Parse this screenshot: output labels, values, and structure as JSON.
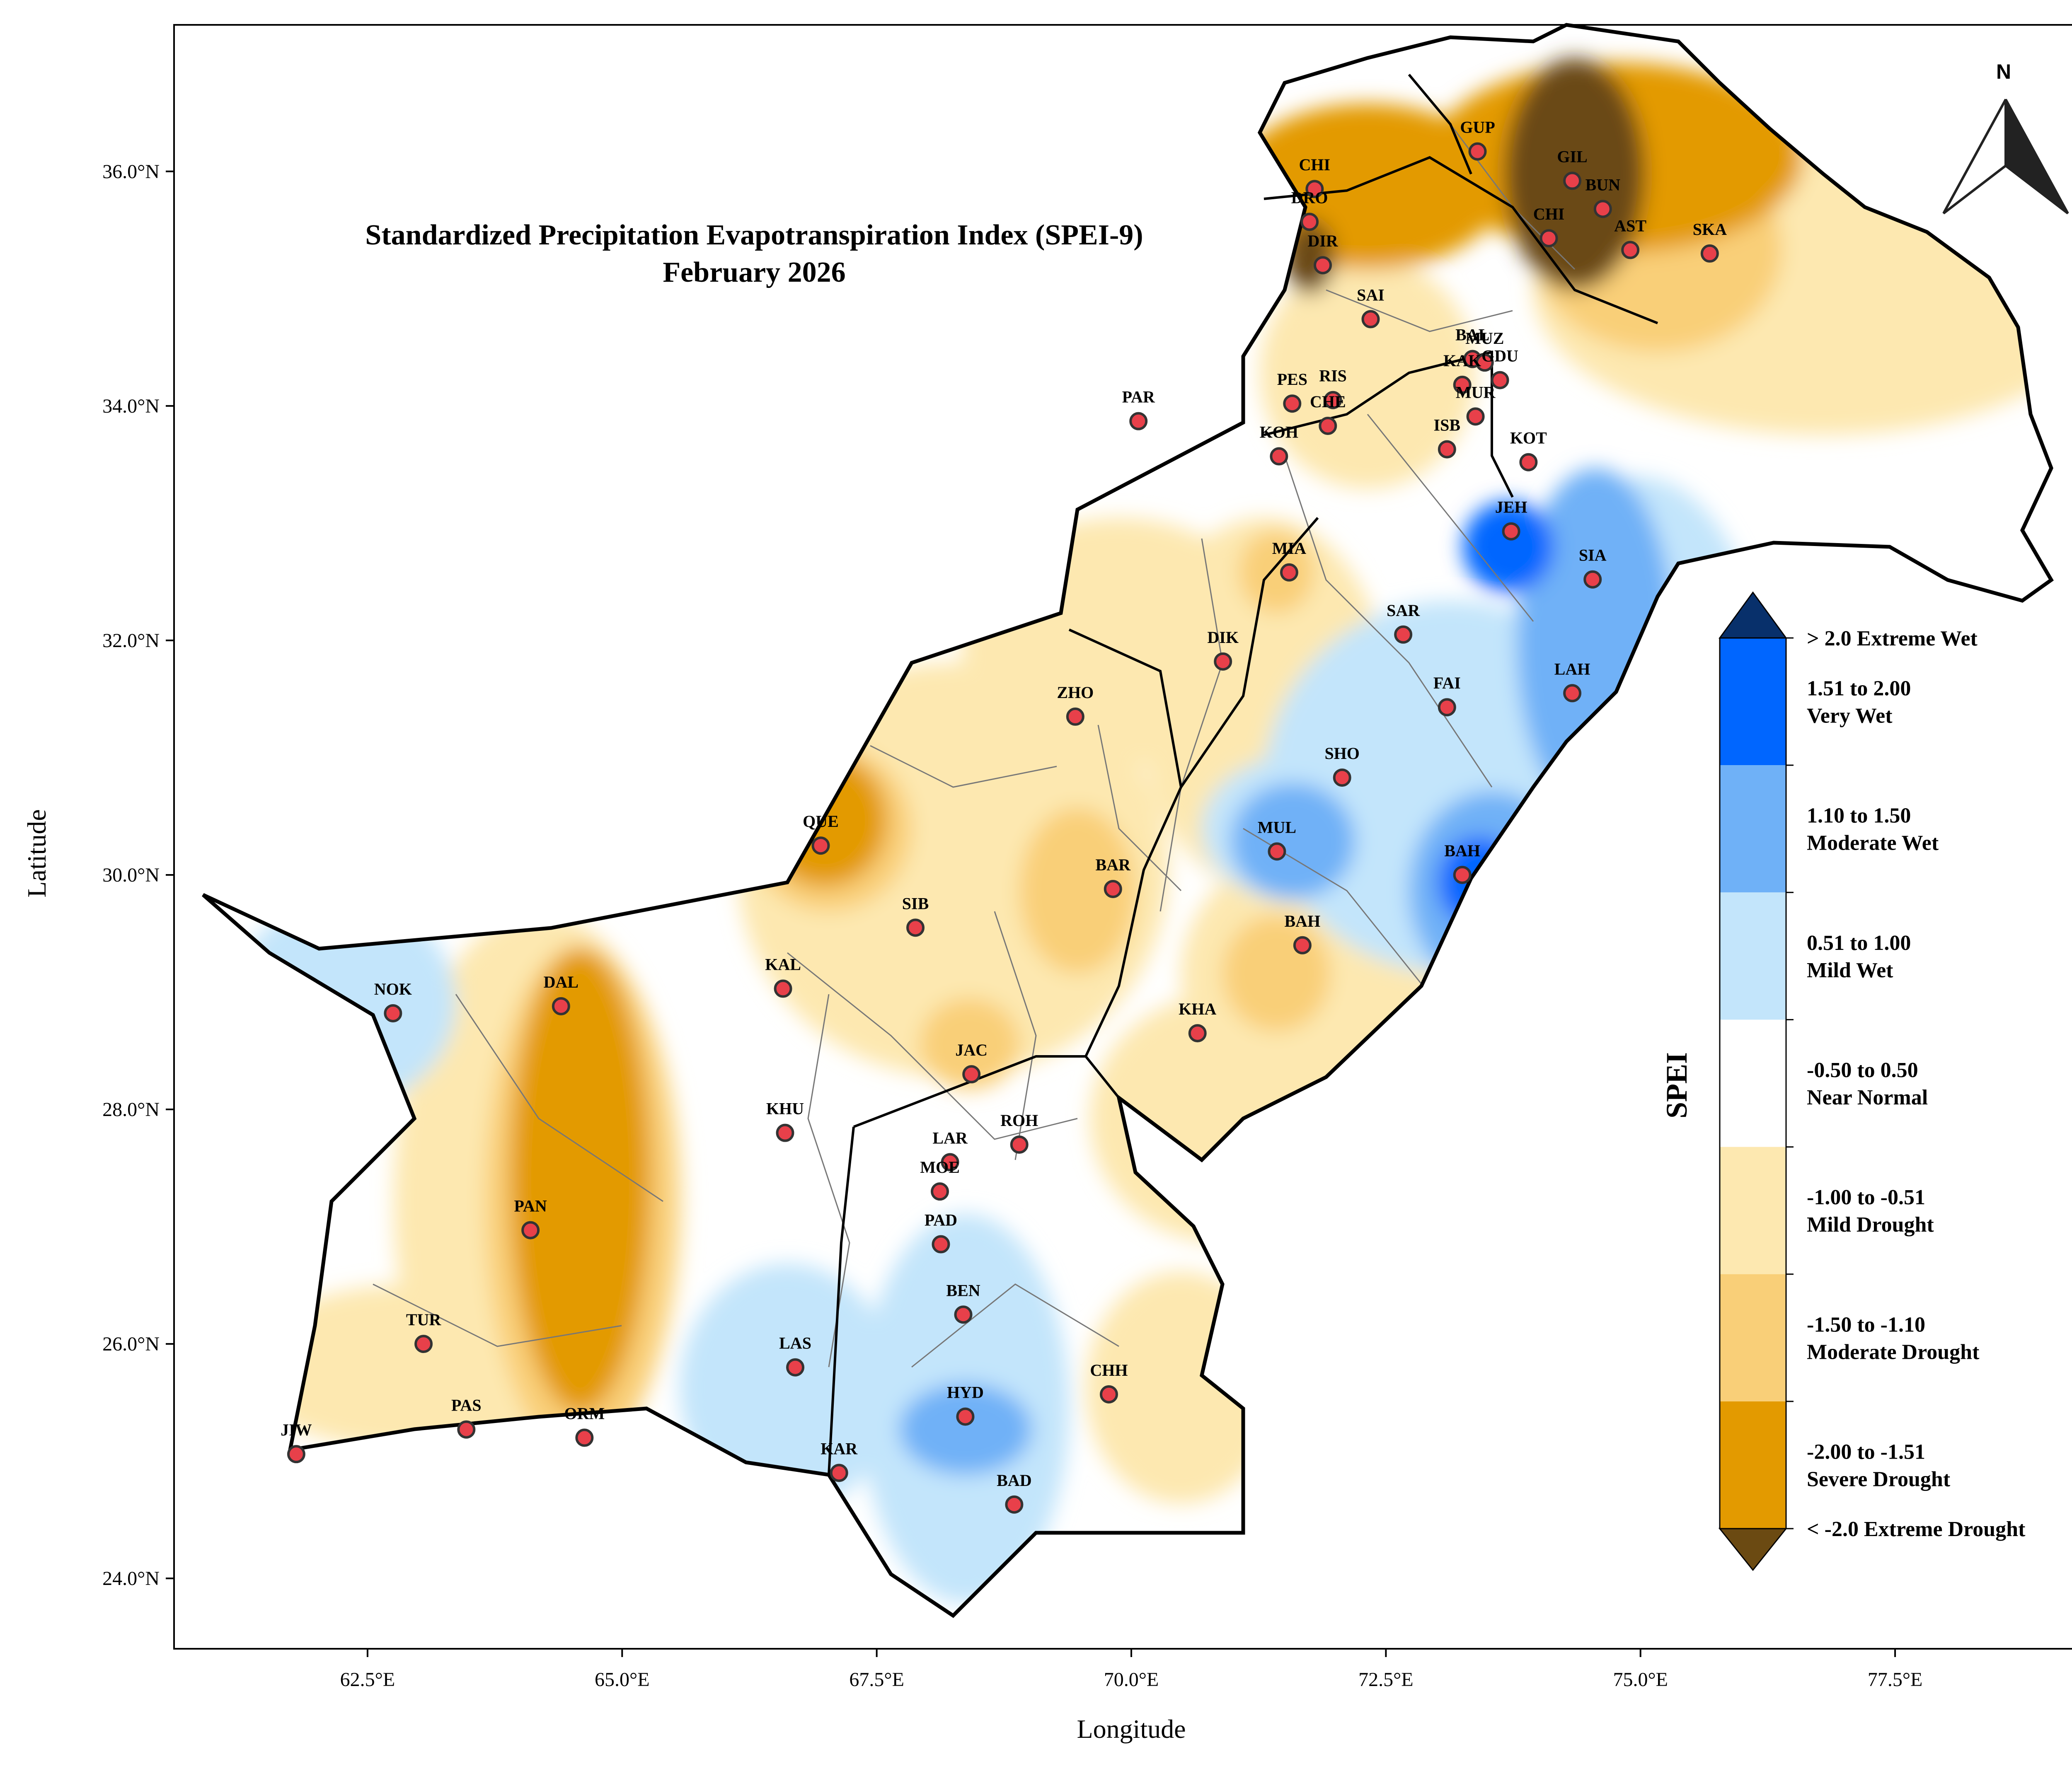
{
  "title": {
    "line1": "Standardized Precipitation Evapotranspiration Index (SPEI-9)",
    "line2": "February 2026"
  },
  "axes": {
    "xlabel": "Longitude",
    "ylabel": "Latitude",
    "x_ticks": [
      {
        "value": 62.5,
        "label": "62.5°E"
      },
      {
        "value": 65.0,
        "label": "65.0°E"
      },
      {
        "value": 67.5,
        "label": "67.5°E"
      },
      {
        "value": 70.0,
        "label": "70.0°E"
      },
      {
        "value": 72.5,
        "label": "72.5°E"
      },
      {
        "value": 75.0,
        "label": "75.0°E"
      },
      {
        "value": 77.5,
        "label": "77.5°E"
      }
    ],
    "y_ticks": [
      {
        "value": 24.0,
        "label": "24.0°N"
      },
      {
        "value": 26.0,
        "label": "26.0°N"
      },
      {
        "value": 28.0,
        "label": "28.0°N"
      },
      {
        "value": 30.0,
        "label": "30.0°N"
      },
      {
        "value": 32.0,
        "label": "32.0°N"
      },
      {
        "value": 34.0,
        "label": "34.0°N"
      },
      {
        "value": 36.0,
        "label": "36.0°N"
      }
    ],
    "xlim": [
      60.6,
      79.4
    ],
    "ylim": [
      23.4,
      37.25
    ]
  },
  "north_arrow": {
    "label": "N"
  },
  "legend": {
    "title": "SPEI",
    "classes": [
      {
        "color": "#08306b",
        "lines": [
          "> 2.0 Extreme Wet"
        ]
      },
      {
        "color": "#0066ff",
        "lines": [
          "1.51 to 2.00",
          "Very Wet"
        ]
      },
      {
        "color": "#6fb1f7",
        "lines": [
          "1.10 to 1.50",
          "Moderate Wet"
        ]
      },
      {
        "color": "#c3e5fb",
        "lines": [
          "0.51 to 1.00",
          "Mild Wet"
        ]
      },
      {
        "color": "#ffffff",
        "lines": [
          "-0.50 to 0.50",
          "Near Normal"
        ]
      },
      {
        "color": "#fde8b0",
        "lines": [
          "-1.00 to -0.51",
          "Mild Drought"
        ]
      },
      {
        "color": "#f9cf78",
        "lines": [
          "-1.50 to -1.10",
          "Moderate Drought"
        ]
      },
      {
        "color": "#e39a00",
        "lines": [
          "-2.00 to -1.51",
          "Severe Drought"
        ]
      },
      {
        "color": "#6b4a12",
        "lines": [
          "< -2.0 Extreme Drought"
        ]
      }
    ]
  },
  "stations": [
    {
      "code": "CHI",
      "lon": 71.8,
      "lat": 35.85
    },
    {
      "code": "DRO",
      "lon": 71.75,
      "lat": 35.57
    },
    {
      "code": "DIR",
      "lon": 71.88,
      "lat": 35.2
    },
    {
      "code": "GUP",
      "lon": 73.4,
      "lat": 36.17
    },
    {
      "code": "GIL",
      "lon": 74.33,
      "lat": 35.92
    },
    {
      "code": "BUN",
      "lon": 74.63,
      "lat": 35.68
    },
    {
      "code": "CHI",
      "lon": 74.1,
      "lat": 35.43
    },
    {
      "code": "AST",
      "lon": 74.9,
      "lat": 35.33
    },
    {
      "code": "SKA",
      "lon": 75.68,
      "lat": 35.3
    },
    {
      "code": "SAI",
      "lon": 72.35,
      "lat": 34.74
    },
    {
      "code": "BAL",
      "lon": 73.35,
      "lat": 34.4
    },
    {
      "code": "MUZ",
      "lon": 73.47,
      "lat": 34.37
    },
    {
      "code": "GDU",
      "lon": 73.62,
      "lat": 34.22
    },
    {
      "code": "KAK",
      "lon": 73.25,
      "lat": 34.18
    },
    {
      "code": "MUR",
      "lon": 73.38,
      "lat": 33.91
    },
    {
      "code": "PES",
      "lon": 71.58,
      "lat": 34.02
    },
    {
      "code": "RIS",
      "lon": 71.98,
      "lat": 34.05
    },
    {
      "code": "CHE",
      "lon": 71.93,
      "lat": 33.83
    },
    {
      "code": "ISB",
      "lon": 73.1,
      "lat": 33.63
    },
    {
      "code": "KOT",
      "lon": 73.9,
      "lat": 33.52
    },
    {
      "code": "KOH",
      "lon": 71.45,
      "lat": 33.57
    },
    {
      "code": "PAR",
      "lon": 70.07,
      "lat": 33.87
    },
    {
      "code": "JEH",
      "lon": 73.73,
      "lat": 32.93
    },
    {
      "code": "SIA",
      "lon": 74.53,
      "lat": 32.52
    },
    {
      "code": "MIA",
      "lon": 71.55,
      "lat": 32.58
    },
    {
      "code": "SAR",
      "lon": 72.67,
      "lat": 32.05
    },
    {
      "code": "DIK",
      "lon": 70.9,
      "lat": 31.82
    },
    {
      "code": "LAH",
      "lon": 74.33,
      "lat": 31.55
    },
    {
      "code": "FAI",
      "lon": 73.1,
      "lat": 31.43
    },
    {
      "code": "ZHO",
      "lon": 69.45,
      "lat": 31.35
    },
    {
      "code": "SHO",
      "lon": 72.07,
      "lat": 30.83
    },
    {
      "code": "QUE",
      "lon": 66.95,
      "lat": 30.25
    },
    {
      "code": "MUL",
      "lon": 71.43,
      "lat": 30.2
    },
    {
      "code": "BAH",
      "lon": 73.25,
      "lat": 30.0
    },
    {
      "code": "BAR",
      "lon": 69.82,
      "lat": 29.88
    },
    {
      "code": "SIB",
      "lon": 67.88,
      "lat": 29.55
    },
    {
      "code": "BAH",
      "lon": 71.68,
      "lat": 29.4
    },
    {
      "code": "KAL",
      "lon": 66.58,
      "lat": 29.03
    },
    {
      "code": "NOK",
      "lon": 62.75,
      "lat": 28.82
    },
    {
      "code": "DAL",
      "lon": 64.4,
      "lat": 28.88
    },
    {
      "code": "KHA",
      "lon": 70.65,
      "lat": 28.65
    },
    {
      "code": "JAC",
      "lon": 68.43,
      "lat": 28.3
    },
    {
      "code": "KHU",
      "lon": 66.6,
      "lat": 27.8
    },
    {
      "code": "LAR",
      "lon": 68.22,
      "lat": 27.55
    },
    {
      "code": "ROH",
      "lon": 68.9,
      "lat": 27.7
    },
    {
      "code": "MOE",
      "lon": 68.12,
      "lat": 27.3
    },
    {
      "code": "PAN",
      "lon": 64.1,
      "lat": 26.97
    },
    {
      "code": "PAD",
      "lon": 68.13,
      "lat": 26.85
    },
    {
      "code": "BEN",
      "lon": 68.35,
      "lat": 26.25
    },
    {
      "code": "TUR",
      "lon": 63.05,
      "lat": 26.0
    },
    {
      "code": "LAS",
      "lon": 66.7,
      "lat": 25.8
    },
    {
      "code": "CHH",
      "lon": 69.78,
      "lat": 25.57
    },
    {
      "code": "HYD",
      "lon": 68.37,
      "lat": 25.38
    },
    {
      "code": "PAS",
      "lon": 63.47,
      "lat": 25.27
    },
    {
      "code": "ORM",
      "lon": 64.63,
      "lat": 25.2
    },
    {
      "code": "JIW",
      "lon": 61.8,
      "lat": 25.06
    },
    {
      "code": "KAR",
      "lon": 67.13,
      "lat": 24.9
    },
    {
      "code": "BAD",
      "lon": 68.85,
      "lat": 24.63
    }
  ]
}
